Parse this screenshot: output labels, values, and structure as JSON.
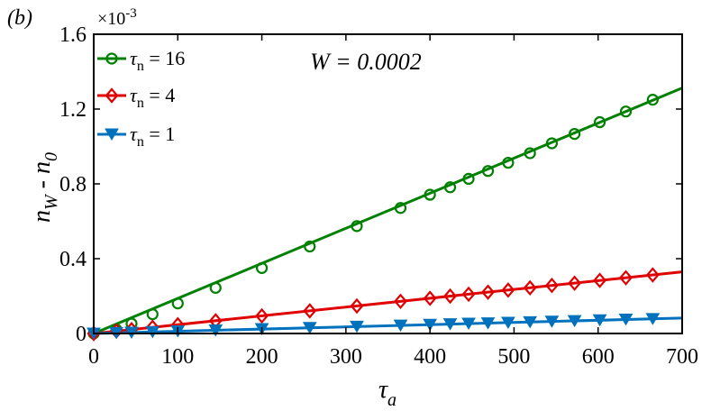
{
  "panel_label": "(b)",
  "annotation": "W = 0.0002",
  "exponent_label": {
    "base": "×10",
    "exp": "-3"
  },
  "ylabel": {
    "n1": "n",
    "s1": "W",
    "mid": " - n",
    "s2": "0"
  },
  "xlabel": {
    "sym": "τ",
    "sub": "a"
  },
  "chart_data": {
    "type": "line",
    "title": "",
    "xlabel": "τ_a",
    "ylabel": "n_W - n_0",
    "xlim": [
      0,
      700
    ],
    "ylim": [
      0,
      1.6
    ],
    "y_scale_note": "×10^-3",
    "xticks": [
      0,
      100,
      200,
      300,
      400,
      500,
      600,
      700
    ],
    "yticks": [
      0,
      0.4,
      0.8,
      1.2,
      1.6
    ],
    "ytick_labels": [
      "0",
      "0.4",
      "0.8",
      "1.2",
      "1.6"
    ],
    "grid": false,
    "legend_position": "top-left",
    "series": [
      {
        "name": "τn = 16",
        "legend": {
          "sym": "τ",
          "sub": "n",
          "rest": " = 16"
        },
        "color": "#008000",
        "marker": "circle",
        "slope": 0.001875,
        "x": [
          0,
          27,
          45,
          70,
          100,
          145,
          200,
          257,
          313,
          365,
          400,
          424,
          446,
          469,
          493,
          519,
          545,
          572,
          602,
          633,
          665
        ],
        "y": [
          0,
          0.021,
          0.053,
          0.103,
          0.161,
          0.244,
          0.35,
          0.465,
          0.574,
          0.671,
          0.742,
          0.782,
          0.827,
          0.869,
          0.913,
          0.964,
          1.017,
          1.067,
          1.13,
          1.187,
          1.25
        ]
      },
      {
        "name": "τn = 4",
        "legend": {
          "sym": "τ",
          "sub": "n",
          "rest": " = 4"
        },
        "color": "#e00000",
        "marker": "diamond",
        "slope": 0.000471,
        "x": [
          0,
          27,
          45,
          70,
          100,
          145,
          200,
          257,
          313,
          365,
          400,
          424,
          446,
          469,
          493,
          519,
          545,
          572,
          602,
          633,
          665
        ],
        "y": [
          0,
          0.013,
          0.021,
          0.033,
          0.047,
          0.068,
          0.094,
          0.121,
          0.147,
          0.172,
          0.188,
          0.2,
          0.21,
          0.221,
          0.232,
          0.244,
          0.257,
          0.269,
          0.284,
          0.298,
          0.313
        ]
      },
      {
        "name": "τn = 1",
        "legend": {
          "sym": "τ",
          "sub": "n",
          "rest": " = 1"
        },
        "color": "#0072bd",
        "marker": "triangle-down",
        "slope": 0.000118,
        "x": [
          0,
          27,
          45,
          70,
          100,
          145,
          200,
          257,
          313,
          365,
          400,
          424,
          446,
          469,
          493,
          519,
          545,
          572,
          602,
          633,
          665
        ],
        "y": [
          0,
          0.003,
          0.005,
          0.008,
          0.012,
          0.017,
          0.024,
          0.03,
          0.037,
          0.043,
          0.047,
          0.05,
          0.053,
          0.055,
          0.058,
          0.061,
          0.064,
          0.067,
          0.071,
          0.075,
          0.078
        ]
      }
    ]
  }
}
